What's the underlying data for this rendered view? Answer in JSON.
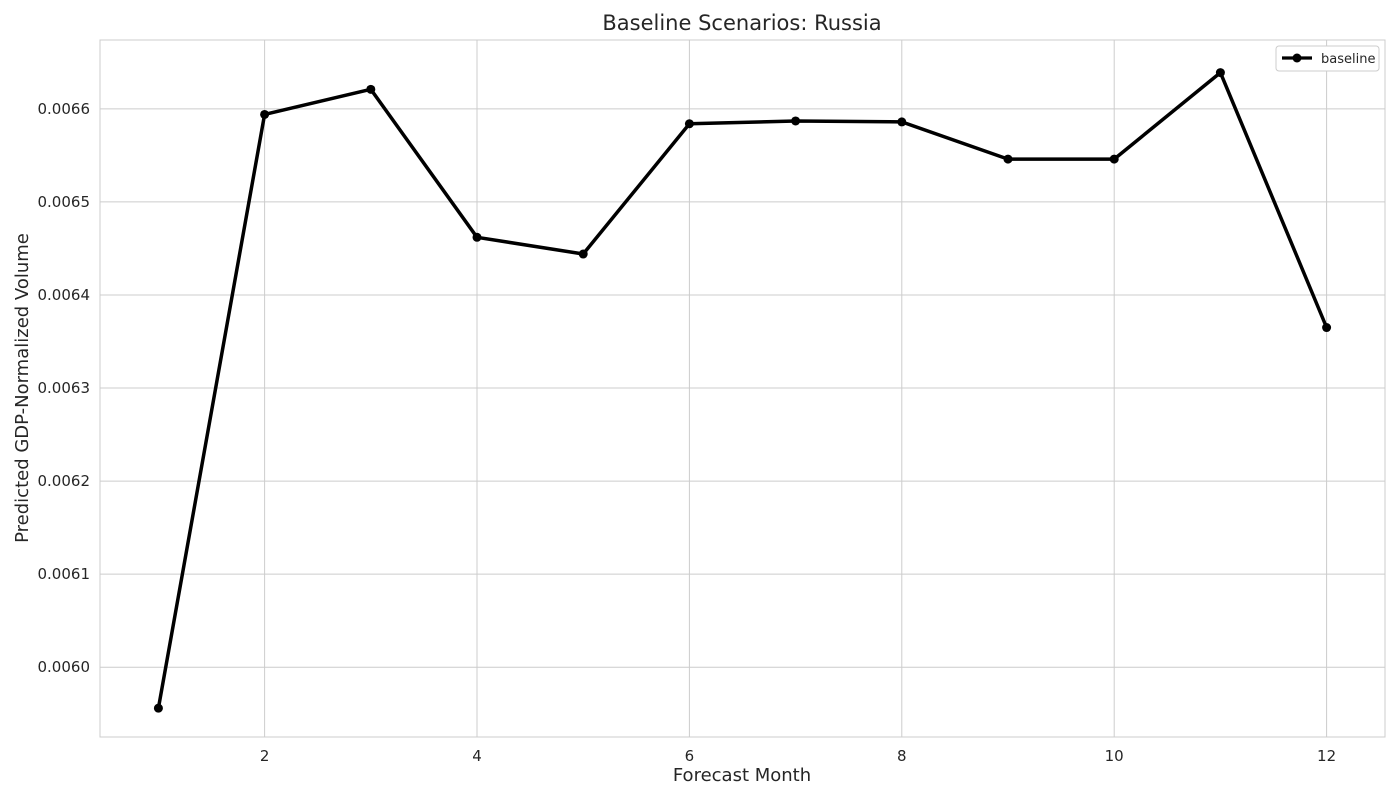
{
  "chart_data": {
    "type": "line",
    "title": "Baseline Scenarios: Russia",
    "xlabel": "Forecast Month",
    "ylabel": "Predicted GDP-Normalized Volume",
    "xlim": [
      0.45,
      12.55
    ],
    "ylim": [
      0.005925,
      0.006674
    ],
    "xticks": [
      2,
      4,
      6,
      8,
      10,
      12
    ],
    "xtick_labels": [
      "2",
      "4",
      "6",
      "8",
      "10",
      "12"
    ],
    "yticks": [
      0.006,
      0.0061,
      0.0062,
      0.0063,
      0.0064,
      0.0065,
      0.0066
    ],
    "ytick_labels": [
      "0.0060",
      "0.0061",
      "0.0062",
      "0.0063",
      "0.0064",
      "0.0065",
      "0.0066"
    ],
    "grid": true,
    "legend_position": "top-right",
    "series": [
      {
        "name": "baseline",
        "color": "#000000",
        "marker": "circle",
        "x": [
          1,
          2,
          3,
          4,
          5,
          6,
          7,
          8,
          9,
          10,
          11,
          12
        ],
        "y": [
          0.005956,
          0.006594,
          0.006621,
          0.006462,
          0.006444,
          0.006584,
          0.006587,
          0.006586,
          0.006546,
          0.006546,
          0.006639,
          0.006365
        ]
      }
    ]
  }
}
